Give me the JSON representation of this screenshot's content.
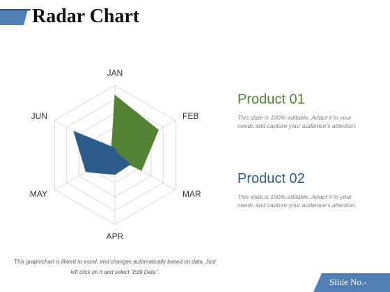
{
  "title": "Radar Chart",
  "colors": {
    "product1": "#548235",
    "product2": "#2E5C8A",
    "accent_bar": "#4F7FB3",
    "grid": "#D9D9D9"
  },
  "chart_data": {
    "type": "radar",
    "categories": [
      "JAN",
      "FEB",
      "MAR",
      "APR",
      "MAY",
      "JUN"
    ],
    "rmax": 5,
    "rings": 5,
    "series": [
      {
        "name": "Product 01",
        "color": "#548235",
        "values": [
          4.3,
          3.6,
          2.2,
          0.2,
          0.3,
          0.3
        ]
      },
      {
        "name": "Product 02",
        "color": "#2E5C8A",
        "values": [
          0.5,
          0.2,
          1.3,
          1.4,
          2.4,
          3.4
        ]
      }
    ]
  },
  "legend": [
    {
      "title": "Product 01",
      "color": "#548235",
      "text": "This slide is 100% editable. Adapt it to your needs and capture your audience's attention."
    },
    {
      "title": "Product 02",
      "color": "#2E5C8A",
      "text": "This slide is 100% editable. Adapt it to your needs and capture your audience's attention."
    }
  ],
  "footnote": "This graph/chart is linked to excel, and changes automatically based on data. Just left click on it and select \"Edit Data\".",
  "slide_no": "Slide No.-"
}
